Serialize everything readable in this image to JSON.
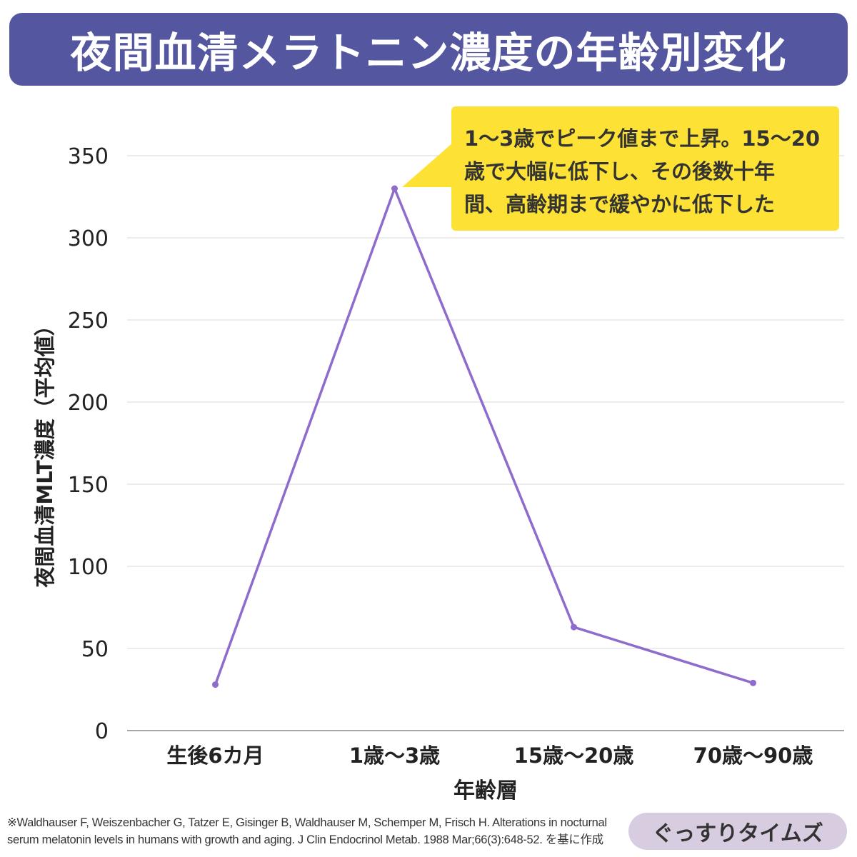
{
  "title": "夜間血清メラトニン濃度の年齢別変化",
  "chart_data": {
    "type": "line",
    "title": "夜間血清メラトニン濃度の年齢別変化",
    "xlabel": "年齢層",
    "ylabel": "夜間血清MLT濃度（平均値）",
    "categories": [
      "生後6カ月",
      "1歳〜3歳",
      "15歳〜20歳",
      "70歳〜90歳"
    ],
    "values": [
      28,
      330,
      63,
      29
    ],
    "ylim": [
      0,
      350
    ],
    "yticks": [
      0,
      50,
      100,
      150,
      200,
      250,
      300,
      350
    ],
    "grid": "horizontal",
    "line_color": "#8e6ccc",
    "annotation": [
      "1〜3歳でピーク値まで上昇。15〜20",
      "歳で大幅に低下し、その後数十年",
      "間、高齢期まで緩やかに低下した"
    ]
  },
  "footnote": [
    "※Waldhauser F, Weiszenbacher G, Tatzer E, Gisinger B, Waldhauser M, Schemper M, Frisch H. Alterations in nocturnal",
    "serum melatonin levels in humans with growth and aging. J Clin Endocrinol Metab. 1988 Mar;66(3):648-52. を基に作成"
  ],
  "brand": "ぐっすりタイムズ",
  "colors": {
    "banner": "#5457a0",
    "callout": "#fde235",
    "brand_pill": "#d8cce0"
  }
}
